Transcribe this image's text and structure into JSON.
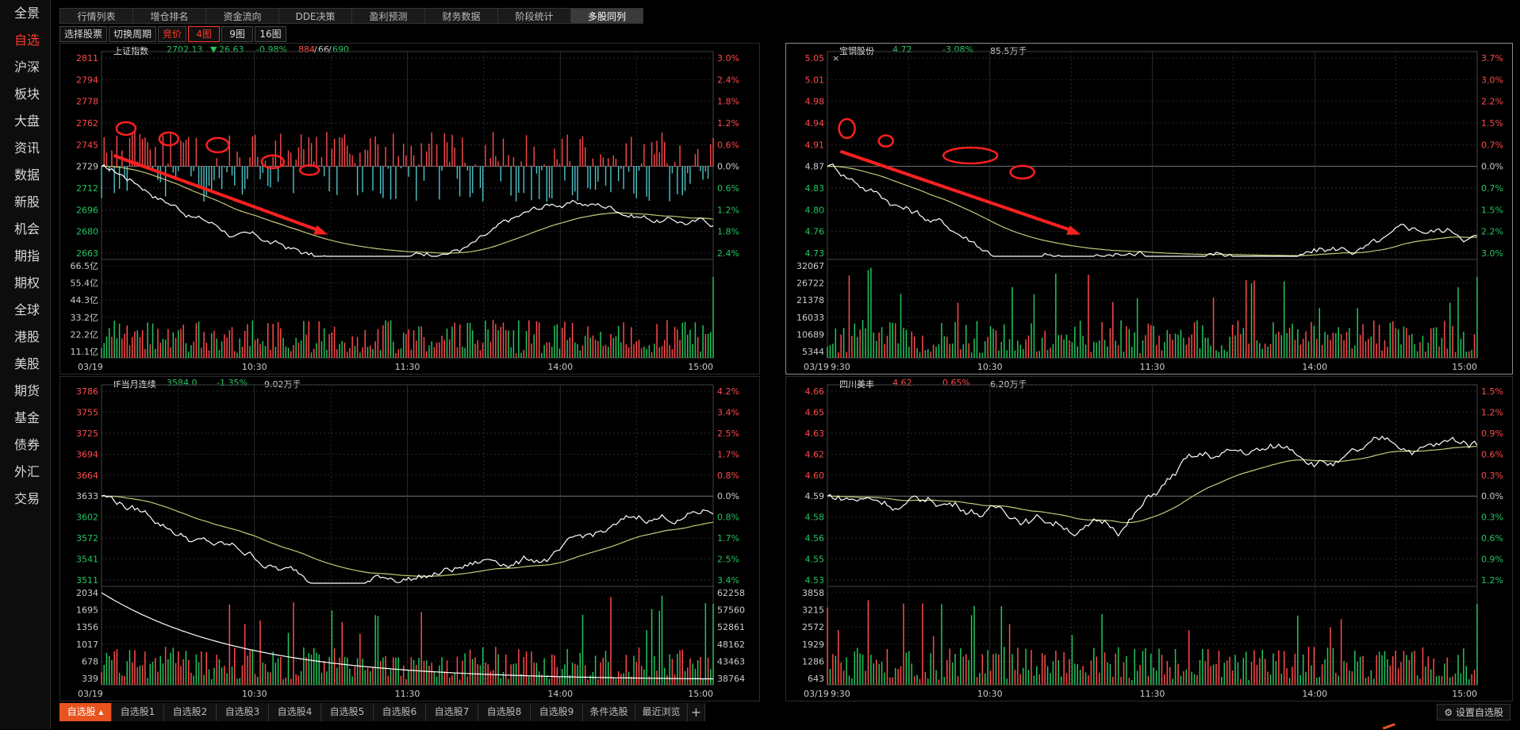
{
  "sidebar": {
    "items": [
      "全景",
      "自选",
      "沪深",
      "板块",
      "大盘",
      "资讯",
      "数据",
      "新股",
      "机会",
      "期指",
      "期权",
      "全球",
      "港股",
      "美股",
      "期货",
      "基金",
      "债券",
      "外汇",
      "交易"
    ],
    "active_index": 1
  },
  "tabs": {
    "items": [
      "行情列表",
      "增仓排名",
      "资金流向",
      "DDE决策",
      "盈利预测",
      "财务数据",
      "阶段统计",
      "多股同列"
    ],
    "active_index": 7
  },
  "toolbar": {
    "select_stock": "选择股票",
    "switch_period": "切换周期",
    "bid": "竞价",
    "view4": "4图",
    "view9": "9图",
    "view16": "16图"
  },
  "colors": {
    "up": "#ff4a4a",
    "down": "#22c55e",
    "price_line": "#ffffff",
    "avg_line": "#c8c878",
    "cyan_bar": "#4fc3c8",
    "annotation": "#ff2020",
    "grid": "#3a3a3a",
    "accent": "#e8531e"
  },
  "panels": [
    {
      "name": "上证指数",
      "price": "2702.13",
      "change_arrow": "▼",
      "change": "26.63",
      "pct": "-0.98%",
      "breadth_up": "884",
      "breadth_flat": "66",
      "breadth_down": "690",
      "date": "03/19",
      "times": [
        "10:30",
        "11:30",
        "14:00",
        "15:00"
      ],
      "price_axis_left": [
        "2811",
        "2794",
        "2778",
        "2762",
        "2745",
        "2729",
        "2712",
        "2696",
        "2680",
        "2663"
      ],
      "price_axis_right": [
        "3.0%",
        "2.4%",
        "1.8%",
        "1.2%",
        "0.6%",
        "0.0%",
        "0.6%",
        "1.2%",
        "1.8%",
        "2.4%"
      ],
      "volume_axis_left": [
        "66.5亿",
        "55.4亿",
        "44.3亿",
        "33.2亿",
        "22.2亿",
        "11.1亿"
      ],
      "volume_axis_right": [],
      "focused": false
    },
    {
      "name": "宝钢股份",
      "price": "4.72",
      "pct": "-3.08%",
      "volume": "85.5万手",
      "date": "03/19",
      "times": [
        "9:30",
        "10:30",
        "11:30",
        "14:00",
        "15:00"
      ],
      "price_axis_left": [
        "5.05",
        "5.01",
        "4.98",
        "4.94",
        "4.91",
        "4.87",
        "4.83",
        "4.80",
        "4.76",
        "4.73"
      ],
      "price_axis_right": [
        "3.7%",
        "3.0%",
        "2.2%",
        "1.5%",
        "0.7%",
        "0.0%",
        "0.7%",
        "1.5%",
        "2.2%",
        "3.0%"
      ],
      "volume_axis_left": [
        "32067",
        "26722",
        "21378",
        "16033",
        "10689",
        "5344"
      ],
      "volume_axis_right": [],
      "focused": true
    },
    {
      "name": "IF当月连续",
      "price": "3584.0",
      "pct": "-1.35%",
      "volume": "9.02万手",
      "date": "03/19",
      "times": [
        "10:30",
        "11:30",
        "14:00",
        "15:00"
      ],
      "price_axis_left": [
        "3786",
        "3755",
        "3725",
        "3694",
        "3664",
        "3633",
        "3602",
        "3572",
        "3541",
        "3511"
      ],
      "price_axis_right": [
        "4.2%",
        "3.4%",
        "2.5%",
        "1.7%",
        "0.8%",
        "0.0%",
        "0.8%",
        "1.7%",
        "2.5%",
        "3.4%"
      ],
      "volume_axis_left": [
        "2034",
        "1695",
        "1356",
        "1017",
        "678",
        "339"
      ],
      "volume_axis_right": [
        "62258",
        "57560",
        "52861",
        "48162",
        "43463",
        "38764"
      ],
      "focused": false
    },
    {
      "name": "四川美丰",
      "price": "4.62",
      "pct": "0.65%",
      "volume": "6.20万手",
      "date": "03/19",
      "times": [
        "9:30",
        "10:30",
        "11:30",
        "14:00",
        "15:00"
      ],
      "price_axis_left": [
        "4.66",
        "4.65",
        "4.63",
        "4.62",
        "4.60",
        "4.59",
        "4.58",
        "4.56",
        "4.55",
        "4.53"
      ],
      "price_axis_right": [
        "1.5%",
        "1.2%",
        "0.9%",
        "0.6%",
        "0.3%",
        "0.0%",
        "0.3%",
        "0.6%",
        "0.9%",
        "1.2%"
      ],
      "volume_axis_left": [
        "3858",
        "3215",
        "2572",
        "1929",
        "1286",
        "643"
      ],
      "volume_axis_right": [],
      "focused": false
    }
  ],
  "bottom_tabs": {
    "items": [
      "自选股 ▴",
      "自选股1",
      "自选股2",
      "自选股3",
      "自选股4",
      "自选股5",
      "自选股6",
      "自选股7",
      "自选股8",
      "自选股9",
      "条件选股",
      "最近浏览"
    ],
    "active_index": 0,
    "add": "+"
  },
  "settings_label": "⚙ 设置自选股"
}
